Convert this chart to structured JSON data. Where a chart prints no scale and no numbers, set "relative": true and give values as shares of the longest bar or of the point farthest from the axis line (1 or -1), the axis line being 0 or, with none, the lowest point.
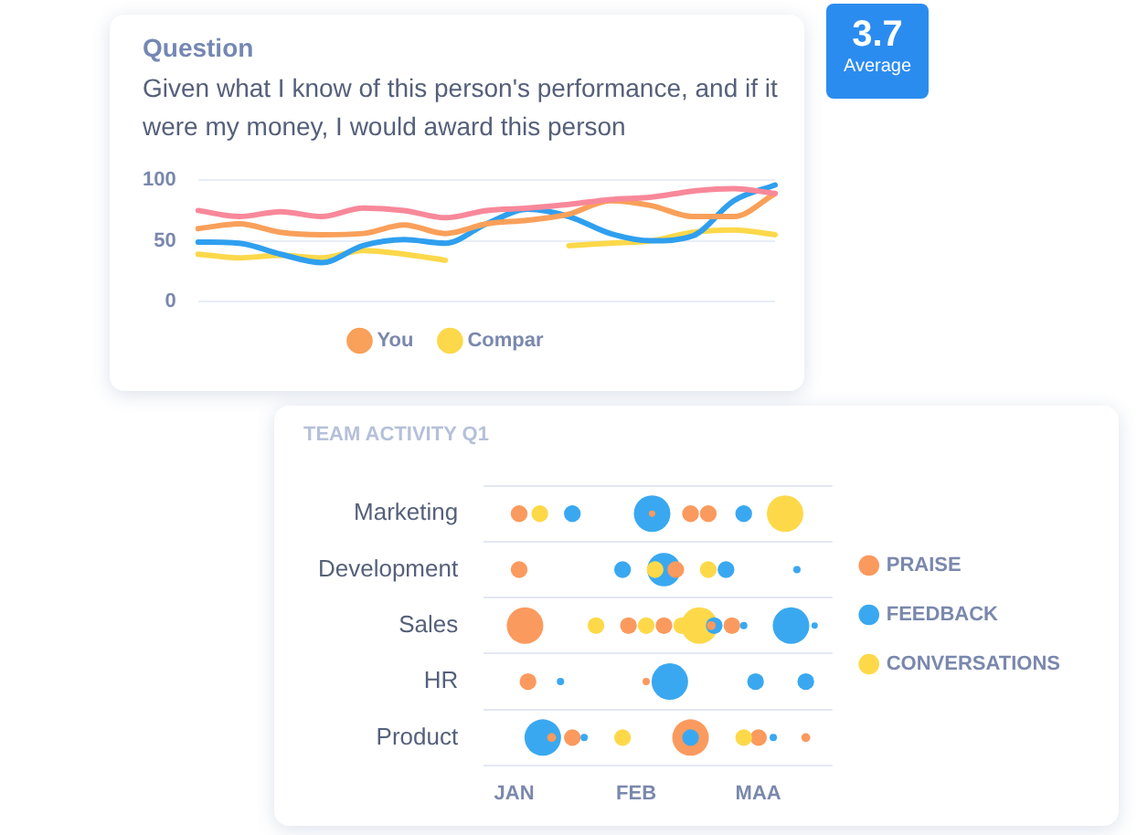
{
  "chart_data": [
    {
      "type": "line",
      "title": "Question",
      "subtitle": "Given what I know of this person's performance, and if it were my money, I would award this person",
      "annotations": [
        "3.7",
        "Average"
      ],
      "categories": [
        null,
        null,
        null,
        null,
        null,
        null,
        null,
        null,
        null,
        null,
        null,
        null,
        null,
        null,
        null
      ],
      "series": [
        {
          "color": "#f8889a",
          "values": [
            75,
            70,
            74,
            70,
            77,
            75,
            69,
            75,
            77,
            80,
            84,
            86,
            91,
            93,
            89
          ]
        },
        {
          "name": "You",
          "color": "#f9a05a",
          "values": [
            60,
            64,
            57,
            55,
            56,
            63,
            56,
            64,
            67,
            72,
            83,
            79,
            70,
            70,
            89
          ]
        },
        {
          "color": "#2f9fef",
          "values": [
            49,
            48,
            39,
            32,
            46,
            51,
            48,
            64,
            76,
            70,
            56,
            50,
            54,
            83,
            96
          ]
        },
        {
          "name": "Compar",
          "color": "#fcd84a",
          "values": [
            39,
            36,
            38,
            36,
            42,
            39,
            34,
            null,
            null,
            46,
            48,
            50,
            57,
            59,
            55
          ]
        }
      ],
      "ylim": [
        0,
        100
      ],
      "yticks": [
        0,
        50,
        100
      ],
      "grid": "y",
      "legend": "bottom",
      "marker": "none",
      "line_style": "solid",
      "tick_labels": "y"
    },
    {
      "type": "bubble",
      "title": "TEAM ACTIVITY Q1",
      "orientation": "horizontal",
      "relative": true,
      "categories": [
        "Marketing",
        "Development",
        "Sales",
        "HR",
        "Product"
      ],
      "annotations": [
        "JAN",
        "FEB",
        "MAA"
      ],
      "series": [
        {
          "name": "PRAISE",
          "color": "#fb9a5e",
          "x": [
            "Marketing",
            "Marketing",
            "Marketing",
            "Marketing",
            "Development",
            "Development",
            "Sales",
            "Sales",
            "Sales",
            "Sales",
            "Sales",
            "HR",
            "HR",
            "Product",
            "Product",
            "Product",
            "Product",
            "Product"
          ],
          "values": [
            0.0,
            0.45,
            0.58,
            0.64,
            0.0,
            0.53,
            0.02,
            0.37,
            0.49,
            0.65,
            0.72,
            0.03,
            0.43,
            0.11,
            0.18,
            0.58,
            0.97,
            0.81
          ],
          "sizes": [
            0.21,
            0.03,
            0.21,
            0.21,
            0.21,
            0.21,
            1,
            0.21,
            0.21,
            0.06,
            0.21,
            0.21,
            0.04,
            0.06,
            0.21,
            1,
            0.06,
            0.21
          ]
        },
        {
          "name": "FEEDBACK",
          "color": "#3aa8f0",
          "x": [
            "Marketing",
            "Marketing",
            "Marketing",
            "Development",
            "Development",
            "Development",
            "Development",
            "Sales",
            "Sales",
            "Sales",
            "Sales",
            "HR",
            "HR",
            "HR",
            "HR",
            "Product",
            "Product",
            "Product",
            "Product"
          ],
          "values": [
            0.18,
            0.45,
            0.76,
            0.35,
            0.49,
            0.7,
            0.94,
            0.66,
            0.76,
            0.92,
            1.0,
            0.14,
            0.51,
            0.8,
            0.97,
            0.08,
            0.22,
            0.58,
            0.86
          ],
          "sizes": [
            0.21,
            1,
            0.21,
            0.21,
            0.84,
            0.21,
            0.04,
            0.21,
            0.04,
            1,
            0.03,
            0.04,
            1,
            0.21,
            0.21,
            1,
            0.04,
            0.21,
            0.04
          ]
        },
        {
          "name": "CONVERSATIONS",
          "color": "#fdd94a",
          "x": [
            "Marketing",
            "Marketing",
            "Development",
            "Development",
            "Sales",
            "Sales",
            "Sales",
            "Sales",
            "Product",
            "Product"
          ],
          "values": [
            0.07,
            0.9,
            0.46,
            0.64,
            0.26,
            0.43,
            0.55,
            0.61,
            0.35,
            0.76
          ],
          "sizes": [
            0.21,
            1,
            0.21,
            0.21,
            0.21,
            0.21,
            0.21,
            1,
            0.21,
            0.21
          ]
        }
      ],
      "grid": "y",
      "legend": "right"
    }
  ]
}
